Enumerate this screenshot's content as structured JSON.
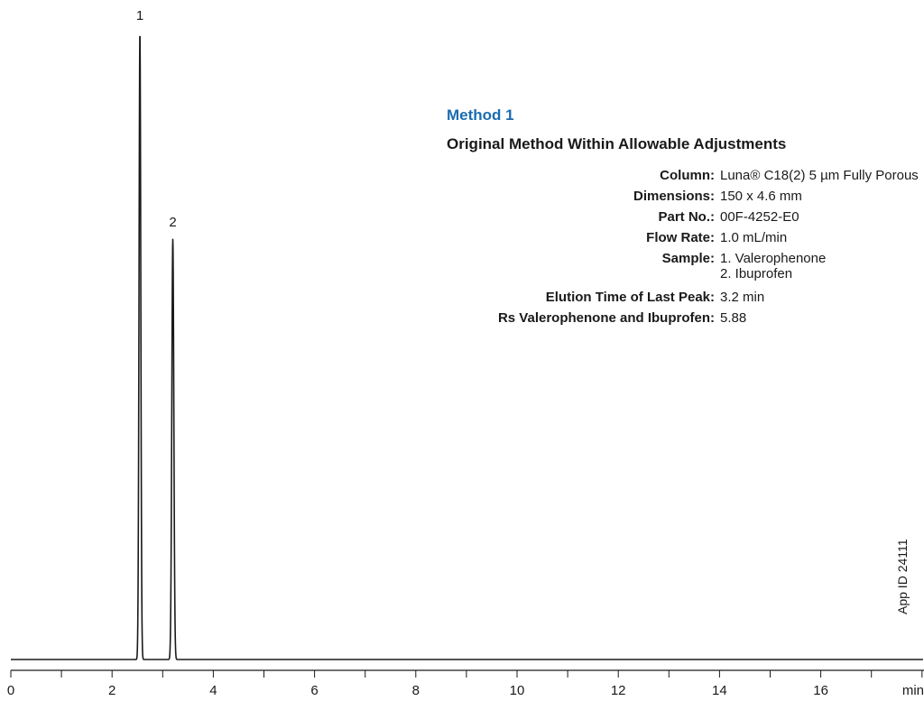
{
  "chart_data": {
    "type": "line",
    "title": "",
    "xlabel": "min",
    "ylabel": "",
    "xlim": [
      0,
      18
    ],
    "ylim": [
      0,
      1.0
    ],
    "x_ticks": [
      0,
      2,
      4,
      6,
      8,
      10,
      12,
      14,
      16
    ],
    "x_tick_labels": [
      "0",
      "2",
      "4",
      "6",
      "8",
      "10",
      "12",
      "14",
      "16"
    ],
    "minor_tick_step": 1,
    "grid": false,
    "color": "#1a1a1a",
    "peaks": [
      {
        "label": "1",
        "retention_time_min": 2.55,
        "relative_height": 1.0,
        "width_min": 0.035
      },
      {
        "label": "2",
        "retention_time_min": 3.2,
        "relative_height": 0.67,
        "width_min": 0.04
      }
    ],
    "baseline_level": 0.0
  },
  "header": {
    "method_label": "Method 1",
    "method_color": "#1a6cb0",
    "subtitle": "Original Method Within Allowable Adjustments"
  },
  "conditions": {
    "column_label": "Column:",
    "column_value": "Luna® C18(2) 5 µm Fully Porous",
    "dimensions_label": "Dimensions:",
    "dimensions_value": "150 x 4.6 mm",
    "part_label": "Part No.:",
    "part_value": "00F-4252-E0",
    "flow_label": "Flow Rate:",
    "flow_value": "1.0 mL/min",
    "sample_label": "Sample:",
    "sample_1": "1. Valerophenone",
    "sample_2": "2. Ibuprofen",
    "elution_label": "Elution Time of Last Peak:",
    "elution_value": "3.2 min",
    "rs_label": "Rs Valerophenone and Ibuprofen:",
    "rs_value": "5.88"
  },
  "footer": {
    "app_id": "App ID 24111"
  }
}
